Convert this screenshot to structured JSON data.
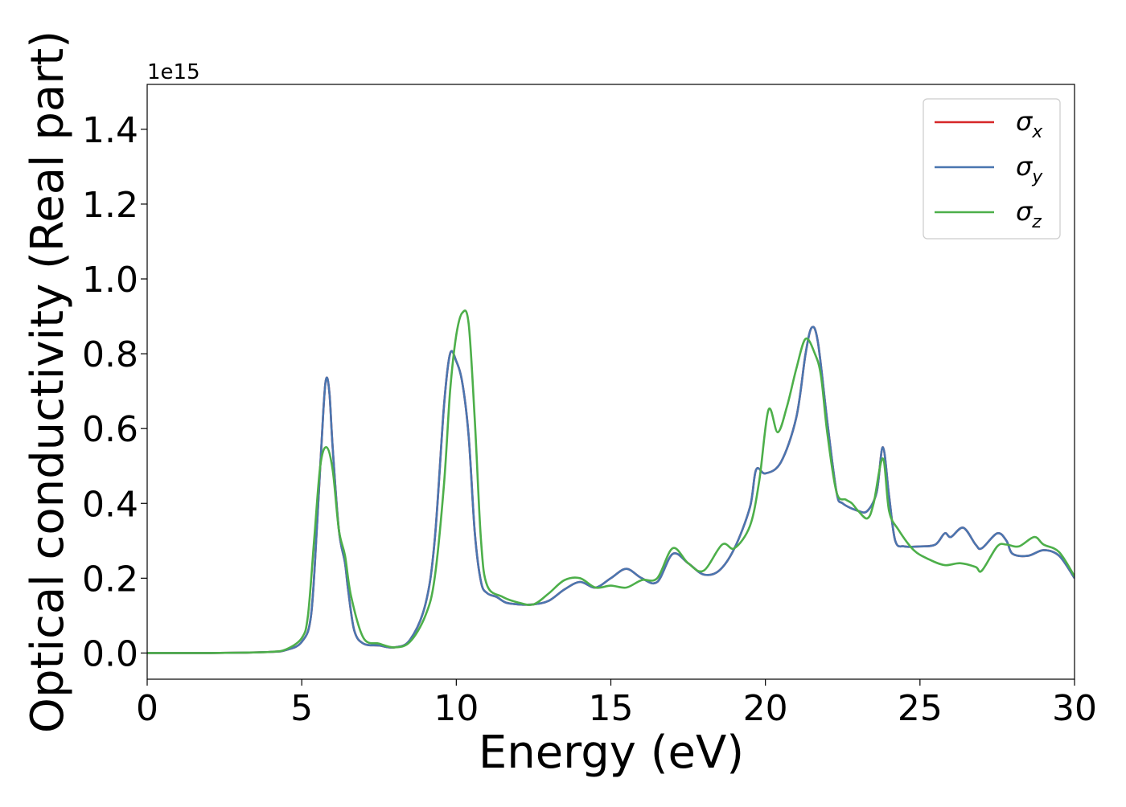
{
  "chart_data": {
    "type": "line",
    "title": "",
    "xlabel": "Energy (eV)",
    "ylabel": "Optical conductivity (Real part)",
    "y_offset_text": "1e15",
    "y_scale_factor": 1000000000000000.0,
    "xlim": [
      0,
      30
    ],
    "ylim": [
      -0.07,
      1.52
    ],
    "xticks": [
      0,
      5,
      10,
      15,
      20,
      25,
      30
    ],
    "xtick_labels": [
      "0",
      "5",
      "10",
      "15",
      "20",
      "25",
      "30"
    ],
    "yticks": [
      0.0,
      0.2,
      0.4,
      0.6,
      0.8,
      1.0,
      1.2,
      1.4
    ],
    "ytick_labels": [
      "0.0",
      "0.2",
      "0.4",
      "0.6",
      "0.8",
      "1.0",
      "1.2",
      "1.4"
    ],
    "grid": false,
    "legend_position": "top-right",
    "series": [
      {
        "name": "σx",
        "legend_base": "σ",
        "legend_sub": "x",
        "color": "#d62728",
        "x": [
          0,
          1,
          2,
          3,
          4,
          4.5,
          5,
          5.3,
          5.5,
          5.7,
          5.8,
          5.9,
          6.0,
          6.2,
          6.4,
          6.5,
          6.7,
          7.0,
          7.5,
          8.0,
          8.5,
          9.0,
          9.3,
          9.6,
          9.8,
          10.0,
          10.2,
          10.4,
          10.6,
          10.8,
          11.0,
          11.3,
          11.6,
          12.0,
          12.5,
          13.0,
          13.5,
          14.0,
          14.5,
          15.0,
          15.5,
          16.0,
          16.5,
          17.0,
          17.5,
          18.0,
          18.5,
          19.0,
          19.5,
          19.7,
          20.0,
          20.5,
          21.0,
          21.3,
          21.5,
          21.7,
          22.0,
          22.3,
          22.5,
          23.0,
          23.3,
          23.6,
          23.8,
          24.0,
          24.2,
          24.5,
          25.0,
          25.5,
          25.8,
          26.0,
          26.4,
          26.8,
          27.0,
          27.5,
          27.8,
          28.0,
          28.5,
          29.0,
          29.5,
          30.0
        ],
        "y": [
          0.0,
          0.0,
          0.0,
          0.001,
          0.003,
          0.008,
          0.03,
          0.1,
          0.35,
          0.65,
          0.735,
          0.69,
          0.55,
          0.33,
          0.24,
          0.17,
          0.06,
          0.025,
          0.02,
          0.015,
          0.035,
          0.13,
          0.3,
          0.66,
          0.8,
          0.78,
          0.72,
          0.58,
          0.32,
          0.19,
          0.16,
          0.15,
          0.135,
          0.13,
          0.13,
          0.14,
          0.17,
          0.19,
          0.175,
          0.2,
          0.225,
          0.2,
          0.19,
          0.265,
          0.24,
          0.21,
          0.22,
          0.28,
          0.39,
          0.49,
          0.48,
          0.51,
          0.63,
          0.8,
          0.87,
          0.83,
          0.62,
          0.43,
          0.4,
          0.38,
          0.38,
          0.43,
          0.55,
          0.42,
          0.3,
          0.285,
          0.285,
          0.29,
          0.32,
          0.31,
          0.335,
          0.29,
          0.28,
          0.32,
          0.3,
          0.265,
          0.26,
          0.275,
          0.26,
          0.2
        ]
      },
      {
        "name": "σy",
        "legend_base": "σ",
        "legend_sub": "y",
        "color": "#4a76b0",
        "x": [
          0,
          1,
          2,
          3,
          4,
          4.5,
          5,
          5.3,
          5.5,
          5.7,
          5.8,
          5.9,
          6.0,
          6.2,
          6.4,
          6.5,
          6.7,
          7.0,
          7.5,
          8.0,
          8.5,
          9.0,
          9.3,
          9.6,
          9.8,
          10.0,
          10.2,
          10.4,
          10.6,
          10.8,
          11.0,
          11.3,
          11.6,
          12.0,
          12.5,
          13.0,
          13.5,
          14.0,
          14.5,
          15.0,
          15.5,
          16.0,
          16.5,
          17.0,
          17.5,
          18.0,
          18.5,
          19.0,
          19.5,
          19.7,
          20.0,
          20.5,
          21.0,
          21.3,
          21.5,
          21.7,
          22.0,
          22.3,
          22.5,
          23.0,
          23.3,
          23.6,
          23.8,
          24.0,
          24.2,
          24.5,
          25.0,
          25.5,
          25.8,
          26.0,
          26.4,
          26.8,
          27.0,
          27.5,
          27.8,
          28.0,
          28.5,
          29.0,
          29.5,
          30.0
        ],
        "y": [
          0.0,
          0.0,
          0.0,
          0.001,
          0.003,
          0.008,
          0.03,
          0.1,
          0.35,
          0.65,
          0.735,
          0.69,
          0.55,
          0.33,
          0.24,
          0.17,
          0.06,
          0.025,
          0.02,
          0.015,
          0.035,
          0.13,
          0.3,
          0.66,
          0.8,
          0.78,
          0.72,
          0.58,
          0.32,
          0.19,
          0.16,
          0.15,
          0.135,
          0.13,
          0.13,
          0.14,
          0.17,
          0.19,
          0.175,
          0.2,
          0.225,
          0.2,
          0.19,
          0.265,
          0.24,
          0.21,
          0.22,
          0.28,
          0.39,
          0.49,
          0.48,
          0.51,
          0.63,
          0.8,
          0.87,
          0.83,
          0.62,
          0.43,
          0.4,
          0.38,
          0.38,
          0.43,
          0.55,
          0.42,
          0.3,
          0.285,
          0.285,
          0.29,
          0.32,
          0.31,
          0.335,
          0.29,
          0.28,
          0.32,
          0.3,
          0.265,
          0.26,
          0.275,
          0.26,
          0.2
        ]
      },
      {
        "name": "σz",
        "legend_base": "σ",
        "legend_sub": "z",
        "color": "#4daf4a",
        "x": [
          0,
          1,
          2,
          3,
          4,
          4.5,
          5,
          5.2,
          5.4,
          5.6,
          5.8,
          6.0,
          6.2,
          6.4,
          6.6,
          7.0,
          7.5,
          8.0,
          8.5,
          9.0,
          9.3,
          9.6,
          9.8,
          10.0,
          10.2,
          10.4,
          10.6,
          10.8,
          11.0,
          11.5,
          12.0,
          12.5,
          13.0,
          13.5,
          14.0,
          14.5,
          15.0,
          15.5,
          16.0,
          16.5,
          17.0,
          17.5,
          18.0,
          18.6,
          19.0,
          19.5,
          19.8,
          20.1,
          20.4,
          20.7,
          21.0,
          21.3,
          21.6,
          21.8,
          22.0,
          22.3,
          22.6,
          22.8,
          23.0,
          23.3,
          23.5,
          23.8,
          24.0,
          24.3,
          24.8,
          25.3,
          25.8,
          26.3,
          26.8,
          27.0,
          27.5,
          27.8,
          28.2,
          28.7,
          29.0,
          29.5,
          30.0
        ],
        "y": [
          0.0,
          0.0,
          0.0,
          0.001,
          0.003,
          0.01,
          0.04,
          0.1,
          0.3,
          0.5,
          0.55,
          0.49,
          0.33,
          0.26,
          0.15,
          0.04,
          0.025,
          0.015,
          0.03,
          0.1,
          0.2,
          0.45,
          0.7,
          0.85,
          0.91,
          0.88,
          0.62,
          0.3,
          0.18,
          0.15,
          0.135,
          0.13,
          0.16,
          0.195,
          0.2,
          0.175,
          0.18,
          0.175,
          0.195,
          0.2,
          0.28,
          0.24,
          0.22,
          0.29,
          0.28,
          0.34,
          0.46,
          0.65,
          0.59,
          0.66,
          0.76,
          0.84,
          0.8,
          0.74,
          0.59,
          0.43,
          0.41,
          0.4,
          0.38,
          0.36,
          0.4,
          0.52,
          0.38,
          0.33,
          0.275,
          0.25,
          0.235,
          0.24,
          0.23,
          0.22,
          0.285,
          0.29,
          0.285,
          0.31,
          0.29,
          0.27,
          0.205
        ]
      }
    ]
  }
}
